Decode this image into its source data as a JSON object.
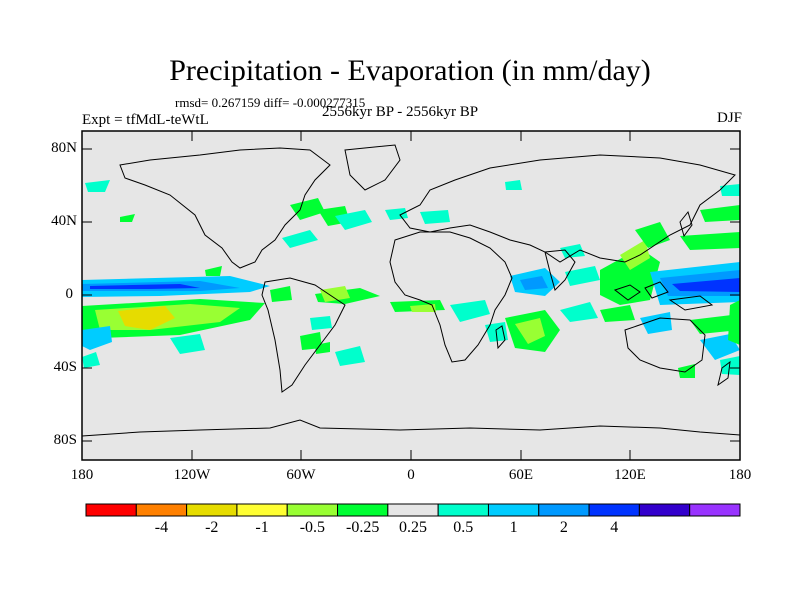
{
  "title": "Precipitation - Evaporation (in mm/day)",
  "stats_text": "rmsd= 0.267159 diff= -0.000277315",
  "period_text": "2556kyr BP - 2556kyr BP",
  "experiment_text": "Expt = tfMdL-teWtL",
  "season_text": "DJF",
  "map": {
    "y_axis_labels": [
      "80N",
      "40N",
      "0",
      "40S",
      "80S"
    ],
    "x_axis_labels": [
      "180",
      "120W",
      "60W",
      "0",
      "60E",
      "120E",
      "180"
    ],
    "background_color": "#e6e6e6"
  },
  "colorbar": {
    "colors": [
      "#ff0000",
      "#ff8000",
      "#e6dc00",
      "#ffff33",
      "#99ff33",
      "#00ff33",
      "#e6e6e6",
      "#00ffcc",
      "#00ccff",
      "#0099ff",
      "#0033ff",
      "#3300cc",
      "#9933ff"
    ],
    "labels": [
      "-4",
      "-2",
      "-1",
      "-0.5",
      "-0.25",
      "0.25",
      "0.5",
      "1",
      "2",
      "4"
    ]
  }
}
